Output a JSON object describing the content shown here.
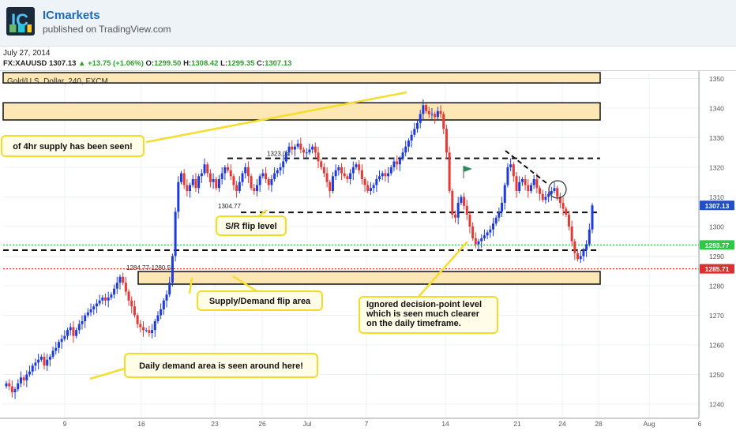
{
  "header": {
    "brand": "ICmarkets",
    "published": "published on TradingView.com",
    "date": "July 27, 2014"
  },
  "quote": {
    "symbol": "FX:XAUUSD",
    "last": "1307.13",
    "change": "+13.75 (+1.06%)",
    "o_label": "O:",
    "o": "1299.50",
    "h_label": "H:",
    "h": "1308.42",
    "l_label": "L:",
    "l": "1299.35",
    "c_label": "C:",
    "c": "1307.13"
  },
  "chart_title": "Gold/U.S. Dollar, 240, FXCM",
  "colors": {
    "up": "#1e3cde",
    "down": "#e53935",
    "zone_fill": "#fde7b4",
    "zone_border": "#111111",
    "note_fill": "#fffde7",
    "note_border": "#f2dc2a",
    "green_line": "#27c93f",
    "red_line": "#e53935",
    "badge_blue": "#1f4fc9",
    "badge_green": "#2ec845",
    "badge_red": "#d93030"
  },
  "chart_data": {
    "type": "candlestick",
    "title": "Gold/U.S. Dollar, 240, FXCM",
    "y_ticks": [
      1240,
      1250,
      1260,
      1270,
      1280,
      1290,
      1300,
      1310,
      1320,
      1330,
      1340,
      1350
    ],
    "ylim": [
      1236,
      1352
    ],
    "x_tick_labels": [
      "9",
      "16",
      "23",
      "26",
      "Jul",
      "7",
      "14",
      "21",
      "24",
      "28",
      "Aug",
      "6"
    ],
    "grid": true,
    "price_badges": [
      {
        "value": 1307.13,
        "label": "1307.13",
        "color": "#1f4fc9"
      },
      {
        "value": 1293.77,
        "label": "1293.77",
        "color": "#2ec845"
      },
      {
        "value": 1285.71,
        "label": "1285.71",
        "color": "#d93030"
      }
    ],
    "horizontal_lines": [
      {
        "value": 1323.04,
        "style": "dashed",
        "color": "#111111",
        "label": "1323.04"
      },
      {
        "value": 1304.77,
        "style": "dashed",
        "color": "#111111",
        "label": "1304.77"
      },
      {
        "value": 1292.0,
        "style": "dashed",
        "color": "#111111",
        "label": ""
      },
      {
        "value": 1293.77,
        "style": "dotted",
        "color": "#27c93f",
        "label": ""
      },
      {
        "value": 1285.71,
        "style": "dotted",
        "color": "#e53935",
        "label": ""
      }
    ],
    "zones": [
      {
        "from": 1348.5,
        "to": 1352,
        "label": ""
      },
      {
        "from": 1336,
        "to": 1341.8,
        "label": ""
      },
      {
        "from": 1280.53,
        "to": 1284.77,
        "label": "1284.77-1280.53"
      }
    ],
    "annotations": [
      "of 4hr supply has been seen!",
      "S/R flip level",
      "Supply/Demand flip area",
      "Ignored decision-point level which is seen much clearer on the daily timeframe.",
      "Daily demand area is seen around here!"
    ],
    "closes": [
      1247,
      1246,
      1244,
      1245,
      1247,
      1249,
      1248,
      1250,
      1251,
      1253,
      1254,
      1255,
      1256,
      1253,
      1255,
      1256,
      1258,
      1259,
      1261,
      1262,
      1263,
      1265,
      1266,
      1263,
      1265,
      1267,
      1268,
      1270,
      1271,
      1272,
      1273,
      1274,
      1275,
      1276,
      1275,
      1276,
      1277,
      1279,
      1281,
      1283,
      1281,
      1278,
      1275,
      1273,
      1270,
      1267,
      1266,
      1265,
      1265,
      1264,
      1265,
      1268,
      1270,
      1272,
      1275,
      1277,
      1281,
      1290,
      1305,
      1315,
      1318,
      1314,
      1312,
      1314,
      1316,
      1313,
      1317,
      1318,
      1321,
      1318,
      1315,
      1316,
      1313,
      1316,
      1318,
      1320,
      1319,
      1317,
      1314,
      1312,
      1315,
      1318,
      1320,
      1317,
      1313,
      1312,
      1314,
      1317,
      1318,
      1316,
      1314,
      1316,
      1318,
      1319,
      1320,
      1322,
      1325,
      1327,
      1326,
      1327,
      1328,
      1326,
      1325,
      1325,
      1326,
      1327,
      1325,
      1322,
      1320,
      1318,
      1315,
      1312,
      1317,
      1319,
      1320,
      1318,
      1317,
      1316,
      1318,
      1320,
      1321,
      1319,
      1316,
      1314,
      1312,
      1313,
      1314,
      1316,
      1317,
      1318,
      1317,
      1318,
      1320,
      1322,
      1321,
      1323,
      1325,
      1327,
      1329,
      1331,
      1333,
      1335,
      1338,
      1341,
      1339,
      1338,
      1338,
      1337,
      1339,
      1338,
      1333,
      1325,
      1312,
      1304,
      1303,
      1308,
      1310,
      1307,
      1304,
      1300,
      1296,
      1294,
      1295,
      1296,
      1297,
      1298,
      1299,
      1301,
      1303,
      1305,
      1308,
      1314,
      1320,
      1321,
      1317,
      1312,
      1315,
      1316,
      1314,
      1312,
      1314,
      1316,
      1313,
      1311,
      1309,
      1310,
      1311,
      1312,
      1313,
      1310,
      1308,
      1306,
      1304,
      1300,
      1295,
      1291,
      1289,
      1290,
      1292,
      1294,
      1299,
      1307.13
    ],
    "legend": "none"
  }
}
